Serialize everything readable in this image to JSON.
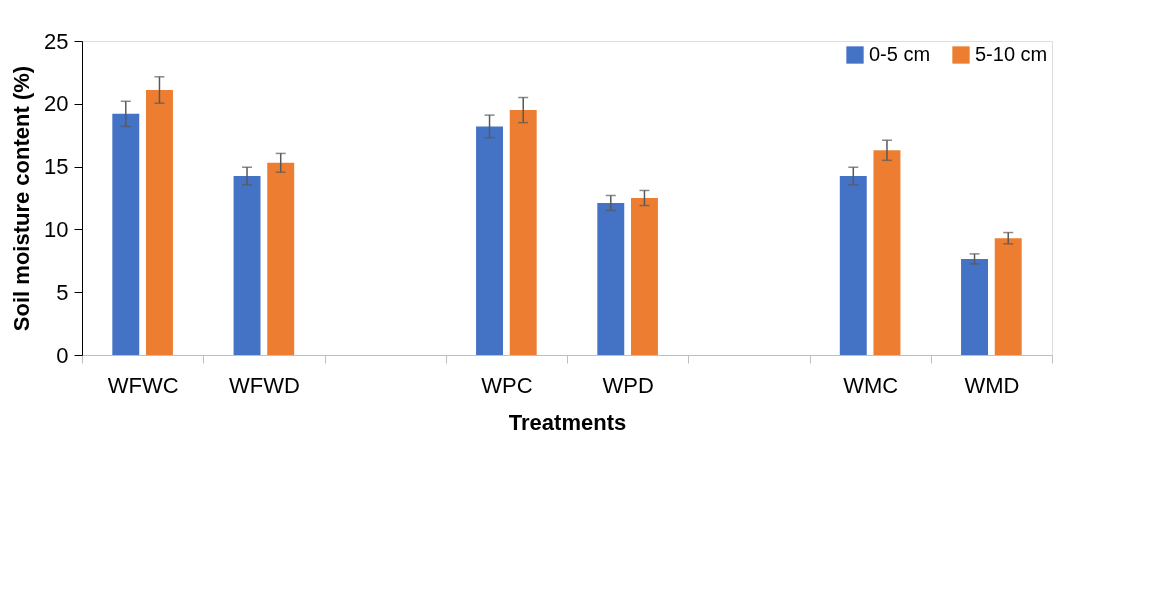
{
  "chart_data": {
    "type": "bar",
    "xlabel": "Treatments",
    "ylabel": "Soil moisture content (%)",
    "categories": [
      "WFWC",
      "WFWD",
      null,
      "WPC",
      "WPD",
      null,
      "WMC",
      "WMD"
    ],
    "series": [
      {
        "name": "0-5 cm",
        "color": "#4472c4",
        "values": [
          19.2,
          14.25,
          null,
          18.2,
          12.1,
          null,
          14.25,
          7.65
        ],
        "errors": [
          1.0,
          0.7,
          null,
          0.9,
          0.6,
          null,
          0.7,
          0.4
        ]
      },
      {
        "name": "5-10 cm",
        "color": "#ed7d31",
        "values": [
          21.1,
          15.3,
          null,
          19.5,
          12.5,
          null,
          16.3,
          9.3
        ],
        "errors": [
          1.05,
          0.75,
          null,
          1.0,
          0.6,
          null,
          0.8,
          0.45
        ]
      }
    ],
    "ylim": [
      0,
      25
    ],
    "yticks": [
      0,
      5,
      10,
      15,
      20,
      25
    ],
    "grid": false,
    "legend": "top right"
  }
}
